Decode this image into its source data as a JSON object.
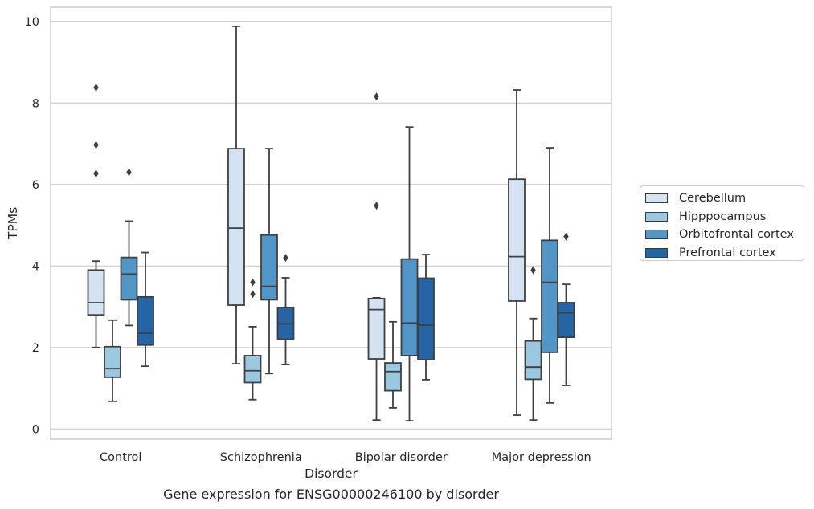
{
  "chart_data": {
    "type": "box",
    "ylabel": "TPMs",
    "xlabel": "Disorder",
    "caption": "Gene expression for ENSG00000246100 by disorder",
    "ylim": [
      -0.25,
      10.35
    ],
    "yticks": [
      0,
      2,
      4,
      6,
      8,
      10
    ],
    "grid": "horizontal",
    "legend_position": "right",
    "categories": [
      "Control",
      "Schizophrenia",
      "Bipolar disorder",
      "Major depression"
    ],
    "series": [
      {
        "name": "Cerebellum",
        "color": "#d3e3f2",
        "boxes": [
          {
            "whislo": 2.0,
            "q1": 2.8,
            "med": 3.1,
            "q3": 3.9,
            "whishi": 4.12,
            "fliers": [
              6.27,
              6.97,
              8.38
            ]
          },
          {
            "whislo": 1.6,
            "q1": 3.04,
            "med": 4.93,
            "q3": 6.88,
            "whishi": 9.88,
            "fliers": []
          },
          {
            "whislo": 0.22,
            "q1": 1.72,
            "med": 2.93,
            "q3": 3.2,
            "whishi": 3.22,
            "fliers": [
              5.48,
              8.16
            ]
          },
          {
            "whislo": 0.34,
            "q1": 3.14,
            "med": 4.23,
            "q3": 6.13,
            "whishi": 8.32,
            "fliers": []
          }
        ]
      },
      {
        "name": "Hipppocampus",
        "color": "#9ac8e0",
        "boxes": [
          {
            "whislo": 0.68,
            "q1": 1.27,
            "med": 1.48,
            "q3": 2.02,
            "whishi": 2.67,
            "fliers": []
          },
          {
            "whislo": 0.72,
            "q1": 1.14,
            "med": 1.43,
            "q3": 1.8,
            "whishi": 2.51,
            "fliers": [
              3.31,
              3.6
            ]
          },
          {
            "whislo": 0.52,
            "q1": 0.94,
            "med": 1.41,
            "q3": 1.62,
            "whishi": 2.63,
            "fliers": []
          },
          {
            "whislo": 0.22,
            "q1": 1.22,
            "med": 1.52,
            "q3": 2.16,
            "whishi": 2.71,
            "fliers": [
              3.9
            ]
          }
        ]
      },
      {
        "name": "Orbitofrontal cortex",
        "color": "#5196c6",
        "boxes": [
          {
            "whislo": 2.54,
            "q1": 3.17,
            "med": 3.8,
            "q3": 4.21,
            "whishi": 5.1,
            "fliers": [
              6.3
            ]
          },
          {
            "whislo": 1.36,
            "q1": 3.17,
            "med": 3.5,
            "q3": 4.76,
            "whishi": 6.88,
            "fliers": []
          },
          {
            "whislo": 0.2,
            "q1": 1.8,
            "med": 2.6,
            "q3": 4.17,
            "whishi": 7.41,
            "fliers": []
          },
          {
            "whislo": 0.64,
            "q1": 1.88,
            "med": 3.6,
            "q3": 4.63,
            "whishi": 6.9,
            "fliers": []
          }
        ]
      },
      {
        "name": "Prefrontal cortex",
        "color": "#2565a6",
        "boxes": [
          {
            "whislo": 1.54,
            "q1": 2.06,
            "med": 2.35,
            "q3": 3.24,
            "whishi": 4.33,
            "fliers": []
          },
          {
            "whislo": 1.58,
            "q1": 2.2,
            "med": 2.58,
            "q3": 2.98,
            "whishi": 3.71,
            "fliers": [
              4.2
            ]
          },
          {
            "whislo": 1.21,
            "q1": 1.7,
            "med": 2.55,
            "q3": 3.7,
            "whishi": 4.28,
            "fliers": []
          },
          {
            "whislo": 1.07,
            "q1": 2.25,
            "med": 2.85,
            "q3": 3.1,
            "whishi": 3.55,
            "fliers": [
              4.72
            ]
          }
        ]
      }
    ]
  }
}
